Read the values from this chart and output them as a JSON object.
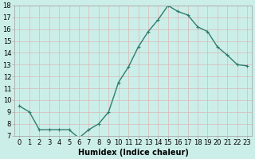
{
  "x": [
    0,
    1,
    2,
    3,
    4,
    5,
    6,
    7,
    8,
    9,
    10,
    11,
    12,
    13,
    14,
    15,
    16,
    17,
    18,
    19,
    20,
    21,
    22,
    23
  ],
  "y": [
    9.5,
    9.0,
    7.5,
    7.5,
    7.5,
    7.5,
    6.8,
    7.5,
    8.0,
    9.0,
    11.5,
    12.8,
    14.5,
    15.8,
    16.8,
    18.0,
    17.5,
    17.2,
    16.2,
    15.8,
    14.5,
    13.8,
    13.0,
    12.9
  ],
  "line_color": "#2e7d6e",
  "marker": "+",
  "marker_color": "#2e7d6e",
  "bg_color": "#cceee8",
  "grid_color": "#d8b8b8",
  "xlabel": "Humidex (Indice chaleur)",
  "xlim": [
    -0.5,
    23.5
  ],
  "ylim": [
    7,
    18
  ],
  "yticks": [
    7,
    8,
    9,
    10,
    11,
    12,
    13,
    14,
    15,
    16,
    17,
    18
  ],
  "xticks": [
    0,
    1,
    2,
    3,
    4,
    5,
    6,
    7,
    8,
    9,
    10,
    11,
    12,
    13,
    14,
    15,
    16,
    17,
    18,
    19,
    20,
    21,
    22,
    23
  ],
  "xlabel_fontsize": 7,
  "tick_fontsize": 6,
  "linewidth": 1.0,
  "markersize": 3,
  "spine_color": "#aaaaaa"
}
